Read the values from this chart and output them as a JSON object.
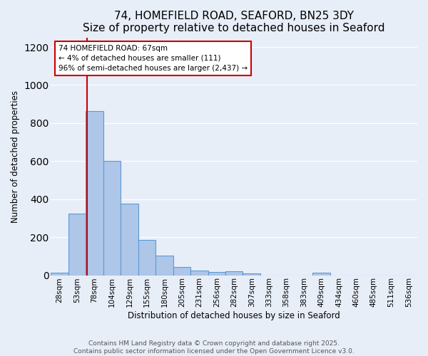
{
  "title": "74, HOMEFIELD ROAD, SEAFORD, BN25 3DY",
  "subtitle": "Size of property relative to detached houses in Seaford",
  "xlabel": "Distribution of detached houses by size in Seaford",
  "ylabel": "Number of detached properties",
  "categories": [
    "28sqm",
    "53sqm",
    "78sqm",
    "104sqm",
    "129sqm",
    "155sqm",
    "180sqm",
    "205sqm",
    "231sqm",
    "256sqm",
    "282sqm",
    "307sqm",
    "333sqm",
    "358sqm",
    "383sqm",
    "409sqm",
    "434sqm",
    "460sqm",
    "485sqm",
    "511sqm",
    "536sqm"
  ],
  "values": [
    15,
    325,
    865,
    600,
    375,
    185,
    105,
    45,
    25,
    18,
    20,
    10,
    0,
    0,
    0,
    12,
    0,
    0,
    0,
    0,
    0
  ],
  "bar_color": "#aec6e8",
  "bar_edge_color": "#5b9bd5",
  "bg_color": "#e8eef8",
  "grid_color": "#ffffff",
  "vline_color": "#cc0000",
  "annotation_text": "74 HOMEFIELD ROAD: 67sqm\n← 4% of detached houses are smaller (111)\n96% of semi-detached houses are larger (2,437) →",
  "annotation_box_color": "#ffffff",
  "annotation_box_edge": "#cc0000",
  "ylim": [
    0,
    1250
  ],
  "yticks": [
    0,
    200,
    400,
    600,
    800,
    1000,
    1200
  ],
  "footer": "Contains HM Land Registry data © Crown copyright and database right 2025.\nContains public sector information licensed under the Open Government Licence v3.0.",
  "title_fontsize": 11,
  "axis_fontsize": 8.5,
  "tick_fontsize": 7.5,
  "footer_fontsize": 6.5,
  "annot_fontsize": 7.5
}
